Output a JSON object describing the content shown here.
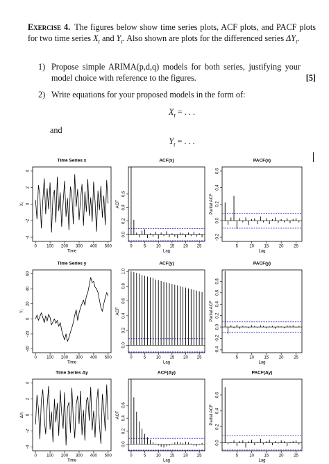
{
  "heading": "Exercise 4.",
  "intro": [
    "The figures below show time series plots, ACF plots, and PACF plots for two time series ",
    "X",
    "t",
    " and ",
    "Y",
    "t",
    ". Also shown are plots for the differenced series ",
    "ΔY",
    "t",
    "."
  ],
  "items": [
    {
      "label": "1)",
      "text": "Propose simple ARIMA(p,d,q) models for both series, justifying your model choice with reference to the figures.",
      "marks": "[5]"
    },
    {
      "label": "2)",
      "text": "Write equations for your proposed models in the form of:"
    }
  ],
  "equations": [
    {
      "lhs": "X",
      "sub": "t",
      "rhs": "= . . ."
    },
    {
      "lhs": "Y",
      "sub": "t",
      "rhs": "= . . ."
    }
  ],
  "connector": "and",
  "chart_data": [
    {
      "type": "line",
      "title": "Time Series x",
      "xlabel": "Time",
      "ylabel": "X",
      "ylabel_subscript": "t",
      "x": [
        0,
        10,
        20,
        30,
        40,
        50,
        60,
        70,
        80,
        90,
        100,
        110,
        120,
        130,
        140,
        150,
        160,
        170,
        180,
        190,
        200,
        210,
        220,
        230,
        240,
        250,
        260,
        270,
        280,
        290,
        300,
        310,
        320,
        330,
        340,
        350,
        360,
        370,
        380,
        390,
        400,
        410,
        420,
        430,
        440,
        450,
        460,
        470,
        480,
        490,
        500
      ],
      "values": [
        0.5,
        -1.8,
        2.3,
        1.1,
        -2.9,
        0.4,
        3.1,
        -1.2,
        1.9,
        -0.6,
        2.6,
        -3.4,
        0.9,
        1.7,
        -2.2,
        3.3,
        -0.8,
        1.4,
        -2.7,
        0.2,
        2.8,
        -1.5,
        0.7,
        -3.1,
        2.1,
        1.2,
        -2.4,
        3.6,
        -0.3,
        1.8,
        -1.9,
        0.6,
        2.4,
        -2.6,
        1.5,
        -0.9,
        3.0,
        -1.4,
        0.8,
        -2.1,
        2.7,
        0.3,
        -3.3,
        1.6,
        -0.7,
        2.2,
        -1.6,
        1.0,
        -2.5,
        2.9,
        0.1
      ],
      "color": "#000000",
      "xlim": [
        -20,
        520
      ],
      "ylim": [
        -4.5,
        4.5
      ],
      "xticks": [
        0,
        100,
        200,
        300,
        400,
        500
      ],
      "yticks": [
        -4,
        -2,
        0,
        2,
        4
      ]
    },
    {
      "type": "stem",
      "title": "ACF(x)",
      "xlabel": "Lag",
      "ylabel": "ACF",
      "x": [
        0,
        1,
        2,
        3,
        4,
        5,
        6,
        7,
        8,
        9,
        10,
        11,
        12,
        13,
        14,
        15,
        16,
        17,
        18,
        19,
        20,
        21,
        22,
        23,
        24,
        25,
        26
      ],
      "values": [
        1,
        0.22,
        0.03,
        -0.04,
        0.06,
        0.08,
        -0.05,
        0.02,
        -0.03,
        0.04,
        -0.06,
        0.03,
        -0.02,
        0.05,
        -0.04,
        0.02,
        -0.03,
        -0.05,
        0.03,
        0.02,
        -0.04,
        0.03,
        -0.02,
        0.04,
        -0.03,
        0.02,
        -0.04
      ],
      "confidence_limit": 0.09,
      "color": "#000000",
      "band_color": "#2222cc",
      "xlim": [
        -1,
        27
      ],
      "ylim": [
        -0.1,
        1.0
      ],
      "xticks": [
        0,
        5,
        10,
        15,
        20,
        25
      ],
      "yticks": [
        {
          "value": 0,
          "label": "0.0"
        },
        0.2,
        0.4,
        0.6
      ]
    },
    {
      "type": "stem",
      "title": "PACF(x)",
      "xlabel": "Lag",
      "ylabel": "Partial ACF",
      "x": [
        1,
        2,
        3,
        4,
        5,
        6,
        7,
        8,
        9,
        10,
        11,
        12,
        13,
        14,
        15,
        16,
        17,
        18,
        19,
        20,
        21,
        22,
        23,
        24,
        25,
        26
      ],
      "values": [
        0.22,
        -0.05,
        0.04,
        0.3,
        -0.1,
        0.03,
        -0.02,
        0.04,
        -0.05,
        0.02,
        0.03,
        -0.04,
        0.05,
        -0.02,
        0.03,
        -0.04,
        0.02,
        0.04,
        -0.03,
        0.02,
        -0.02,
        0.03,
        -0.03,
        0.02,
        0.03,
        -0.02
      ],
      "confidence_limit": 0.09,
      "color": "#000000",
      "band_color": "#2222cc",
      "xlim": [
        0,
        27
      ],
      "ylim": [
        -0.25,
        0.65
      ],
      "xticks": [
        5,
        10,
        15,
        20,
        25
      ],
      "yticks": [
        -0.2,
        {
          "value": 0,
          "label": "0.0"
        },
        0.2,
        0.4,
        0.6
      ]
    },
    {
      "type": "line",
      "title": "Time Series y",
      "xlabel": "Time",
      "ylabel": "Y",
      "ylabel_subscript": "t",
      "x": [
        0,
        10,
        20,
        30,
        40,
        50,
        60,
        70,
        80,
        90,
        100,
        110,
        120,
        130,
        140,
        150,
        160,
        170,
        180,
        190,
        200,
        210,
        220,
        230,
        240,
        250,
        260,
        270,
        280,
        290,
        300,
        310,
        320,
        330,
        340,
        350,
        360,
        370,
        380,
        390,
        400,
        410,
        420,
        430,
        440,
        450,
        460,
        470,
        480,
        490,
        500
      ],
      "values": [
        0,
        5,
        -2,
        3,
        8,
        2,
        -5,
        4,
        -3,
        6,
        2,
        -8,
        -4,
        0,
        -6,
        -2,
        -10,
        -5,
        -15,
        -22,
        -28,
        -20,
        -30,
        -25,
        -18,
        -12,
        -5,
        5,
        12,
        -2,
        8,
        15,
        20,
        25,
        18,
        30,
        35,
        45,
        55,
        48,
        50,
        42,
        40,
        35,
        25,
        15,
        10,
        20,
        28,
        35,
        30
      ],
      "color": "#000000",
      "xlim": [
        -20,
        520
      ],
      "ylim": [
        -45,
        65
      ],
      "xticks": [
        0,
        100,
        200,
        300,
        400,
        500
      ],
      "yticks": [
        -40,
        -20,
        0,
        20,
        40,
        60
      ]
    },
    {
      "type": "stem",
      "title": "ACF(y)",
      "xlabel": "Lag",
      "ylabel": "ACF",
      "x": [
        0,
        1,
        2,
        3,
        4,
        5,
        6,
        7,
        8,
        9,
        10,
        11,
        12,
        13,
        14,
        15,
        16,
        17,
        18,
        19,
        20,
        21,
        22,
        23,
        24,
        25,
        26
      ],
      "values": [
        1,
        0.99,
        0.98,
        0.97,
        0.95,
        0.94,
        0.93,
        0.92,
        0.91,
        0.89,
        0.88,
        0.87,
        0.86,
        0.85,
        0.84,
        0.83,
        0.82,
        0.81,
        0.8,
        0.79,
        0.78,
        0.77,
        0.76,
        0.75,
        0.74,
        0.73,
        0.72
      ],
      "confidence_limit": 0.09,
      "color": "#000000",
      "band_color": "#2222cc",
      "xlim": [
        -1,
        27
      ],
      "ylim": [
        -0.1,
        1.02
      ],
      "xticks": [
        0,
        5,
        10,
        15,
        20,
        25
      ],
      "yticks": [
        {
          "value": 0,
          "label": "0.0"
        },
        0.2,
        0.4,
        0.6,
        0.8,
        {
          "value": 1,
          "label": "1.0"
        }
      ]
    },
    {
      "type": "stem",
      "title": "PACF(y)",
      "xlabel": "Lag",
      "ylabel": "Partial ACF",
      "x": [
        1,
        2,
        3,
        4,
        5,
        6,
        7,
        8,
        9,
        10,
        11,
        12,
        13,
        14,
        15,
        16,
        17,
        18,
        19,
        20,
        21,
        22,
        23,
        24,
        25,
        26
      ],
      "values": [
        0.98,
        -0.12,
        0.03,
        -0.02,
        0.04,
        -0.03,
        0.02,
        0.01,
        -0.02,
        0.03,
        0.02,
        -0.01,
        0.03,
        0.02,
        -0.02,
        0.01,
        0.02,
        -0.03,
        0.02,
        0.01,
        -0.02,
        0.03,
        0.02,
        0.03,
        -0.01,
        0.02
      ],
      "confidence_limit": 0.09,
      "color": "#000000",
      "band_color": "#2222cc",
      "xlim": [
        0,
        27
      ],
      "ylim": [
        -0.45,
        1.0
      ],
      "xticks": [
        5,
        10,
        15,
        20,
        25
      ],
      "yticks": [
        -0.4,
        -0.2,
        {
          "value": 0,
          "label": "0.0"
        },
        0.2,
        0.4,
        0.6,
        0.8
      ]
    },
    {
      "type": "line",
      "title": "Time Series Δy",
      "xlabel": "Time",
      "ylabel": "ΔY",
      "ylabel_subscript": "t",
      "x": [
        0,
        10,
        20,
        30,
        40,
        50,
        60,
        70,
        80,
        90,
        100,
        110,
        120,
        130,
        140,
        150,
        160,
        170,
        180,
        190,
        200,
        210,
        220,
        230,
        240,
        250,
        260,
        270,
        280,
        290,
        300,
        310,
        320,
        330,
        340,
        350,
        360,
        370,
        380,
        390,
        400,
        410,
        420,
        430,
        440,
        450,
        460,
        470,
        480,
        490,
        500
      ],
      "values": [
        -1.2,
        2.5,
        0.8,
        -3.0,
        1.9,
        3.2,
        -0.5,
        -2.4,
        1.1,
        3.6,
        -1.8,
        0.4,
        -3.4,
        2.0,
        -0.9,
        1.5,
        -2.6,
        3.1,
        0.2,
        -1.7,
        2.8,
        -3.8,
        0.9,
        1.6,
        -2.2,
        3.4,
        -0.4,
        -2.9,
        1.3,
        2.4,
        -1.1,
        3.0,
        -2.5,
        0.6,
        -3.2,
        1.8,
        2.2,
        -0.7,
        3.5,
        -1.9,
        0.5,
        -2.8,
        1.4,
        3.3,
        -1.3,
        -3.6,
        2.6,
        0.7,
        -2.0,
        3.8,
        -0.6
      ],
      "color": "#000000",
      "xlim": [
        -20,
        520
      ],
      "ylim": [
        -4.5,
        4.5
      ],
      "xticks": [
        0,
        100,
        200,
        300,
        400,
        500
      ],
      "yticks": [
        -4,
        -2,
        0,
        2,
        4
      ]
    },
    {
      "type": "stem",
      "title": "ACF(Δy)",
      "xlabel": "Lag",
      "ylabel": "ACF",
      "x": [
        0,
        1,
        2,
        3,
        4,
        5,
        6,
        7,
        8,
        9,
        10,
        11,
        12,
        13,
        14,
        15,
        16,
        17,
        18,
        19,
        20,
        21,
        22,
        23,
        24,
        25,
        26
      ],
      "values": [
        1,
        0.72,
        0.5,
        0.35,
        0.24,
        0.16,
        0.11,
        0.07,
        0.03,
        0.01,
        -0.02,
        -0.04,
        -0.05,
        -0.03,
        -0.02,
        0.01,
        0.03,
        0.04,
        0.03,
        0.02,
        0.04,
        0.03,
        0.01,
        -0.02,
        -0.03,
        -0.01,
        0.02
      ],
      "confidence_limit": 0.09,
      "color": "#000000",
      "band_color": "#2222cc",
      "xlim": [
        -1,
        27
      ],
      "ylim": [
        -0.1,
        1.0
      ],
      "xticks": [
        0,
        5,
        10,
        15,
        20,
        25
      ],
      "yticks": [
        {
          "value": 0,
          "label": "0.0"
        },
        0.2,
        0.4,
        0.6
      ]
    },
    {
      "type": "stem",
      "title": "PACF(Δy)",
      "xlabel": "Lag",
      "ylabel": "Partial ACF",
      "x": [
        1,
        2,
        3,
        4,
        5,
        6,
        7,
        8,
        9,
        10,
        11,
        12,
        13,
        14,
        15,
        16,
        17,
        18,
        19,
        20,
        21,
        22,
        23,
        24,
        25,
        26
      ],
      "values": [
        0.7,
        -0.02,
        0.01,
        0.03,
        -0.04,
        0.02,
        0.03,
        -0.06,
        0.02,
        0.04,
        -0.03,
        0.01,
        0.05,
        -0.02,
        0.02,
        0.04,
        -0.03,
        0.02,
        -0.01,
        0.03,
        0.02,
        -0.04,
        0.01,
        0.02,
        0.03,
        -0.02
      ],
      "confidence_limit": 0.09,
      "color": "#000000",
      "band_color": "#2222cc",
      "xlim": [
        0,
        27
      ],
      "ylim": [
        -0.1,
        0.8
      ],
      "xticks": [
        5,
        10,
        15,
        20,
        25
      ],
      "yticks": [
        {
          "value": 0,
          "label": "0.0"
        },
        0.2,
        0.4,
        0.6
      ]
    }
  ]
}
